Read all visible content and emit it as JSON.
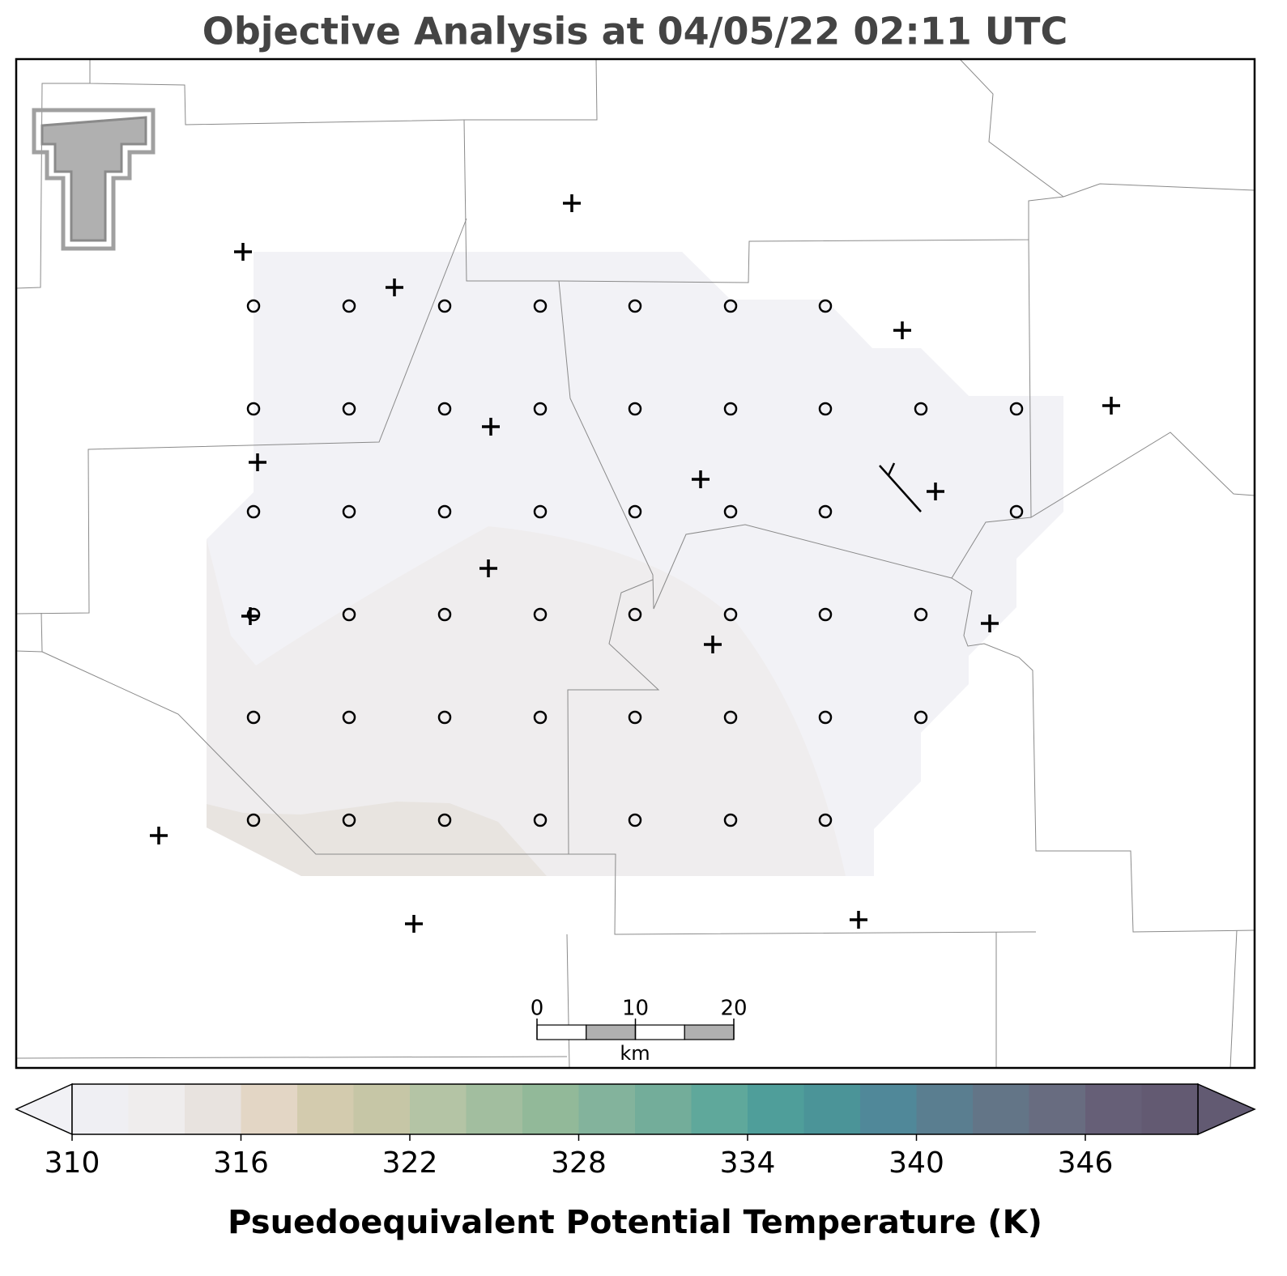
{
  "title": "Objective Analysis at 04/05/22 02:11 UTC",
  "scale_bar": {
    "ticks": [
      0,
      10,
      20
    ],
    "unit": "km"
  },
  "colorbar": {
    "label": "Psuedoequivalent Potential Temperature (K)",
    "levels": [
      310,
      312,
      314,
      316,
      318,
      320,
      322,
      324,
      326,
      328,
      330,
      332,
      334,
      336,
      338,
      340,
      342,
      344,
      346,
      348,
      350
    ],
    "colors": [
      "#efeff3",
      "#efeded",
      "#e8e3df",
      "#e3d6c5",
      "#d3cbae",
      "#c6c6a6",
      "#b4c4a5",
      "#a2be9f",
      "#92b999",
      "#83b39c",
      "#73ad9a",
      "#5fa89b",
      "#4f9e9a",
      "#4b9498",
      "#508899",
      "#5a7e90",
      "#637587",
      "#686c80",
      "#665f77",
      "#635a72"
    ],
    "under_color": "#f1f1f5",
    "over_color": "#625a72",
    "ticks": [
      310,
      316,
      322,
      328,
      334,
      340,
      346
    ]
  }
}
